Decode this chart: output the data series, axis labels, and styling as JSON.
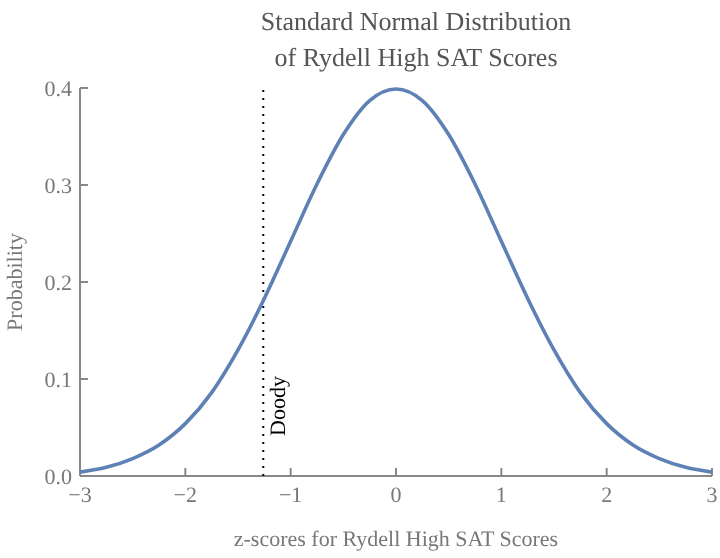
{
  "chart_data": {
    "type": "line",
    "title": "Standard Normal Distribution\nof Rydell High SAT Scores",
    "xlabel": "z-scores for Rydell High SAT Scores",
    "ylabel": "Probability",
    "x": [
      -3,
      -2.75,
      -2.5,
      -2.25,
      -2,
      -1.75,
      -1.5,
      -1.25,
      -1,
      -0.75,
      -0.5,
      -0.25,
      0,
      0.25,
      0.5,
      0.75,
      1,
      1.25,
      1.5,
      1.75,
      2,
      2.25,
      2.5,
      2.75,
      3
    ],
    "series": [
      {
        "color": "#5e81b5",
        "values": [
          0.004,
          0.009,
          0.018,
          0.032,
          0.054,
          0.086,
          0.13,
          0.183,
          0.242,
          0.301,
          0.352,
          0.387,
          0.399,
          0.387,
          0.352,
          0.301,
          0.242,
          0.183,
          0.13,
          0.086,
          0.054,
          0.032,
          0.018,
          0.009,
          0.004
        ]
      }
    ],
    "xlim": [
      -3,
      3
    ],
    "ylim": [
      0,
      0.4
    ],
    "xticks": [
      {
        "value": -3,
        "label": "−3"
      },
      {
        "value": -2,
        "label": "−2"
      },
      {
        "value": -1,
        "label": "−1"
      },
      0,
      1,
      2,
      3
    ],
    "yticks": [
      {
        "value": 0,
        "label": "0.0"
      },
      0.1,
      0.2,
      0.3,
      0.4
    ],
    "ref_lines": [
      {
        "axis": "x",
        "value": -1.26,
        "label": "Doody",
        "color": "#000000",
        "line_style": "dotted"
      }
    ],
    "line_style": "solid"
  }
}
